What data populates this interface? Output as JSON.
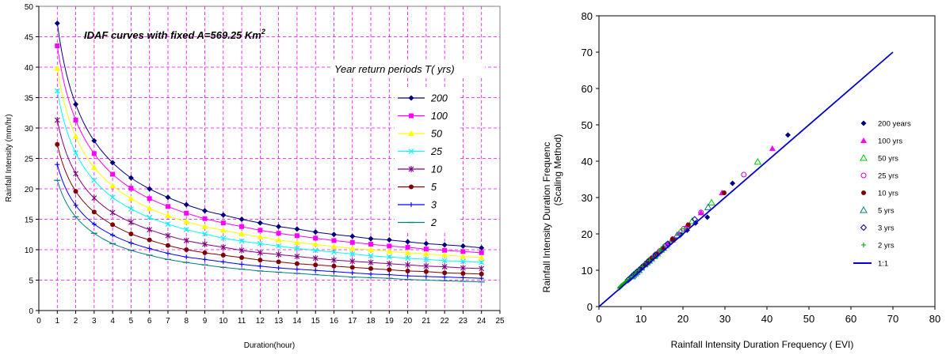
{
  "chart_data": [
    {
      "type": "line",
      "title": "IDAF curves with fixed A=569.25 Km",
      "title_superscript": "2",
      "legend_title": "Year return periods T( yrs)",
      "xlabel": "Duration(hour)",
      "ylabel": "Rainfall Intensity (mm/hr)",
      "xlim": [
        0,
        25
      ],
      "ylim": [
        0,
        50
      ],
      "xticks": [
        0,
        1,
        2,
        3,
        4,
        5,
        6,
        7,
        8,
        9,
        10,
        11,
        12,
        13,
        14,
        15,
        16,
        17,
        18,
        19,
        20,
        21,
        22,
        23,
        24,
        25
      ],
      "yticks": [
        0,
        5,
        10,
        15,
        20,
        25,
        30,
        35,
        40,
        45,
        50
      ],
      "grid": true,
      "legend_position": "right",
      "x": [
        1,
        2,
        3,
        4,
        5,
        6,
        7,
        8,
        9,
        10,
        11,
        12,
        13,
        14,
        15,
        16,
        17,
        18,
        19,
        20,
        21,
        22,
        23,
        24
      ],
      "series": [
        {
          "name": "200",
          "color": "#000080",
          "marker": "diamond",
          "values": [
            47.2,
            33.9,
            27.9,
            24.3,
            21.8,
            20.0,
            18.6,
            17.4,
            16.4,
            15.7,
            15.0,
            14.4,
            13.8,
            13.4,
            12.9,
            12.5,
            12.2,
            11.8,
            11.6,
            11.3,
            11.0,
            10.8,
            10.6,
            10.3
          ]
        },
        {
          "name": "100",
          "color": "#FF00FF",
          "marker": "square",
          "values": [
            43.5,
            31.3,
            25.8,
            22.4,
            20.1,
            18.4,
            17.1,
            16.0,
            15.1,
            14.4,
            13.8,
            13.2,
            12.7,
            12.3,
            11.9,
            11.5,
            11.2,
            10.9,
            10.6,
            10.4,
            10.1,
            9.9,
            9.7,
            9.5
          ]
        },
        {
          "name": "50",
          "color": "#FFFF00",
          "marker": "triangle",
          "values": [
            39.8,
            28.6,
            23.5,
            20.5,
            18.4,
            16.8,
            15.6,
            14.6,
            13.8,
            13.2,
            12.6,
            12.1,
            11.6,
            11.2,
            10.9,
            10.5,
            10.2,
            10.0,
            9.7,
            9.5,
            9.3,
            9.1,
            8.9,
            8.7
          ]
        },
        {
          "name": "25",
          "color": "#00FFFF",
          "marker": "x",
          "values": [
            36.1,
            25.9,
            21.4,
            18.6,
            16.7,
            15.3,
            14.2,
            13.3,
            12.6,
            11.9,
            11.4,
            11.0,
            10.6,
            10.2,
            9.9,
            9.6,
            9.3,
            9.0,
            8.8,
            8.6,
            8.4,
            8.2,
            8.1,
            7.9
          ]
        },
        {
          "name": "10",
          "color": "#800080",
          "marker": "asterisk",
          "values": [
            31.3,
            22.5,
            18.5,
            16.1,
            14.5,
            13.3,
            12.3,
            11.5,
            10.9,
            10.4,
            9.9,
            9.5,
            9.2,
            8.9,
            8.6,
            8.3,
            8.1,
            7.9,
            7.7,
            7.5,
            7.3,
            7.2,
            7.0,
            6.9
          ]
        },
        {
          "name": "5",
          "color": "#800000",
          "marker": "circle",
          "values": [
            27.3,
            19.6,
            16.2,
            14.1,
            12.6,
            11.6,
            10.7,
            10.0,
            9.5,
            9.1,
            8.7,
            8.3,
            8.0,
            7.7,
            7.5,
            7.3,
            7.1,
            6.9,
            6.7,
            6.5,
            6.4,
            6.2,
            6.1,
            6.0
          ]
        },
        {
          "name": "3",
          "color": "#0000FF",
          "marker": "plus",
          "values": [
            24.0,
            17.3,
            14.2,
            12.4,
            11.1,
            10.2,
            9.4,
            8.8,
            8.4,
            8.0,
            7.6,
            7.3,
            7.0,
            6.8,
            6.6,
            6.4,
            6.2,
            6.0,
            5.9,
            5.7,
            5.6,
            5.5,
            5.4,
            5.3
          ]
        },
        {
          "name": "2",
          "color": "#008080",
          "marker": "dash",
          "values": [
            21.4,
            15.4,
            12.7,
            11.0,
            9.9,
            9.1,
            8.4,
            7.9,
            7.5,
            7.1,
            6.8,
            6.5,
            6.3,
            6.1,
            5.9,
            5.7,
            5.5,
            5.4,
            5.3,
            5.1,
            5.0,
            4.9,
            4.8,
            4.7
          ]
        }
      ]
    },
    {
      "type": "scatter",
      "xlabel": "Rainfall Intensity Duration Frequency ( EVI)",
      "ylabel_line1": "Rainfall Intensity Duration Frequenc",
      "ylabel_line2": "(Scaling Method)",
      "xlim": [
        0,
        80
      ],
      "ylim": [
        0,
        80
      ],
      "xticks": [
        0,
        10,
        20,
        30,
        40,
        50,
        60,
        70,
        80
      ],
      "yticks": [
        0,
        10,
        20,
        30,
        40,
        50,
        60,
        70,
        80
      ],
      "grid": false,
      "legend_position": "right",
      "series": [
        {
          "name": "200 years",
          "color": "#000080",
          "marker": "filled-diamond",
          "points": [
            [
              45.0,
              47.2
            ],
            [
              31.8,
              33.9
            ],
            [
              25.8,
              24.6
            ],
            [
              23.0,
              23.0
            ],
            [
              21.0,
              21.0
            ],
            [
              19.5,
              19.8
            ],
            [
              18.0,
              18.5
            ],
            [
              16.5,
              17.1
            ],
            [
              15.5,
              16.0
            ],
            [
              15.0,
              15.5
            ],
            [
              14.2,
              14.7
            ],
            [
              13.5,
              14.0
            ],
            [
              13.0,
              13.5
            ],
            [
              12.5,
              12.9
            ],
            [
              12.0,
              12.5
            ],
            [
              11.6,
              12.0
            ],
            [
              11.2,
              11.6
            ],
            [
              10.8,
              11.2
            ],
            [
              10.5,
              10.9
            ],
            [
              10.2,
              10.6
            ]
          ]
        },
        {
          "name": "100 yrs",
          "color": "#FF00FF",
          "marker": "filled-triangle",
          "points": [
            [
              41.3,
              43.5
            ],
            [
              29.3,
              31.3
            ],
            [
              24.3,
              25.8
            ],
            [
              21.0,
              22.4
            ],
            [
              19.0,
              20.1
            ],
            [
              17.5,
              18.4
            ],
            [
              16.3,
              17.1
            ],
            [
              15.3,
              16.0
            ],
            [
              14.4,
              15.1
            ],
            [
              13.6,
              14.4
            ],
            [
              13.0,
              13.8
            ],
            [
              12.4,
              13.2
            ],
            [
              12.0,
              12.7
            ],
            [
              11.6,
              12.3
            ],
            [
              11.2,
              11.9
            ],
            [
              10.8,
              11.5
            ]
          ]
        },
        {
          "name": "50 yrs",
          "color": "#00CC00",
          "marker": "open-triangle",
          "points": [
            [
              37.8,
              39.8
            ],
            [
              26.8,
              28.6
            ],
            [
              22.2,
              23.5
            ],
            [
              19.4,
              20.5
            ],
            [
              17.4,
              18.4
            ],
            [
              15.9,
              16.8
            ],
            [
              14.8,
              15.6
            ],
            [
              13.9,
              14.6
            ],
            [
              13.1,
              13.8
            ],
            [
              12.5,
              13.2
            ],
            [
              11.9,
              12.6
            ],
            [
              11.4,
              12.1
            ]
          ]
        },
        {
          "name": "25 yrs",
          "color": "#CC00CC",
          "marker": "open-circle",
          "points": [
            [
              34.5,
              36.3
            ],
            [
              24.3,
              25.9
            ],
            [
              20.2,
              21.4
            ],
            [
              17.6,
              18.6
            ],
            [
              15.8,
              16.7
            ],
            [
              14.5,
              15.3
            ],
            [
              13.4,
              14.2
            ],
            [
              12.6,
              13.3
            ],
            [
              11.9,
              12.6
            ],
            [
              11.3,
              11.9
            ]
          ]
        },
        {
          "name": "10 yrs",
          "color": "#800000",
          "marker": "filled-circle",
          "points": [
            [
              29.8,
              31.3
            ],
            [
              21.3,
              22.5
            ],
            [
              17.5,
              18.5
            ],
            [
              15.3,
              16.1
            ],
            [
              13.7,
              14.5
            ],
            [
              12.6,
              13.3
            ],
            [
              11.6,
              12.3
            ],
            [
              10.9,
              11.5
            ],
            [
              10.3,
              10.9
            ],
            [
              9.8,
              10.4
            ],
            [
              9.4,
              9.9
            ],
            [
              9.0,
              9.5
            ]
          ]
        },
        {
          "name": "5 yrs",
          "color": "#008080",
          "marker": "open-triangle",
          "points": [
            [
              26.0,
              27.3
            ],
            [
              18.6,
              19.6
            ],
            [
              15.3,
              16.2
            ],
            [
              13.3,
              14.1
            ],
            [
              11.9,
              12.6
            ],
            [
              10.9,
              11.6
            ],
            [
              10.1,
              10.7
            ],
            [
              9.5,
              10.0
            ],
            [
              9.0,
              9.5
            ],
            [
              8.6,
              9.1
            ],
            [
              8.2,
              8.7
            ],
            [
              7.9,
              8.3
            ]
          ]
        },
        {
          "name": "3 yrs",
          "color": "#0000CC",
          "marker": "open-diamond",
          "points": [
            [
              22.8,
              24.0
            ],
            [
              16.4,
              17.3
            ],
            [
              13.5,
              14.2
            ],
            [
              11.8,
              12.4
            ],
            [
              10.5,
              11.1
            ],
            [
              9.7,
              10.2
            ],
            [
              8.9,
              9.4
            ],
            [
              8.3,
              8.8
            ],
            [
              7.9,
              8.4
            ],
            [
              7.6,
              8.0
            ],
            [
              7.2,
              7.6
            ],
            [
              6.9,
              7.3
            ]
          ]
        },
        {
          "name": "2 yrs",
          "color": "#00AA00",
          "marker": "plus",
          "points": [
            [
              20.3,
              21.4
            ],
            [
              14.6,
              15.4
            ],
            [
              12.0,
              12.7
            ],
            [
              10.4,
              11.0
            ],
            [
              9.4,
              9.9
            ],
            [
              8.6,
              9.1
            ],
            [
              8.0,
              8.4
            ],
            [
              7.5,
              7.9
            ],
            [
              7.1,
              7.5
            ],
            [
              6.7,
              7.1
            ],
            [
              6.4,
              6.8
            ],
            [
              6.2,
              6.5
            ],
            [
              5.9,
              6.3
            ],
            [
              5.7,
              6.1
            ],
            [
              5.5,
              5.9
            ],
            [
              5.3,
              5.7
            ],
            [
              5.2,
              5.5
            ],
            [
              5.1,
              5.4
            ],
            [
              5.0,
              5.3
            ],
            [
              4.9,
              5.1
            ]
          ]
        },
        {
          "name": "1:1",
          "color": "#0000CC",
          "marker": "line",
          "points": [
            [
              0,
              0
            ],
            [
              70,
              70
            ]
          ]
        }
      ]
    }
  ]
}
